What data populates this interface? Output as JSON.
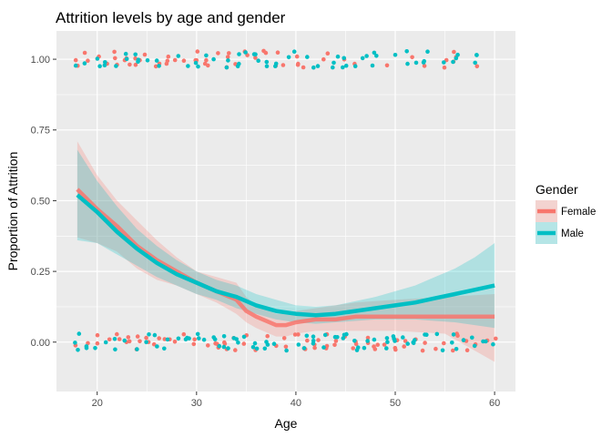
{
  "chart_data": {
    "type": "scatter",
    "title": "Attrition levels by age and gender",
    "xlabel": "Age",
    "ylabel": "Proportion of Attrition",
    "xlim": [
      15.9,
      62.1
    ],
    "ylim": [
      -0.1745,
      1.1
    ],
    "x_ticks": [
      20,
      30,
      40,
      50,
      60
    ],
    "x_tick_labels": [
      "20",
      "30",
      "40",
      "50",
      "60"
    ],
    "y_ticks": [
      0,
      0.25,
      0.5,
      0.75,
      1
    ],
    "y_tick_labels": [
      "0.00",
      "0.25",
      "0.50",
      "0.75",
      "1.00"
    ],
    "grid": true,
    "legend": {
      "title": "Gender",
      "position": "right"
    },
    "colors": {
      "Female": "#F8766D",
      "Male": "#00BFC4",
      "panel": "#EBEBEB",
      "grid": "#FFFFFF"
    },
    "series": [
      {
        "name": "Female",
        "color": "#F8766D",
        "points_y1": [
          18,
          19,
          20,
          21,
          22,
          23,
          24,
          25,
          26,
          27,
          28,
          29,
          30,
          31,
          32,
          33,
          34,
          35,
          36,
          37,
          38,
          39,
          40,
          41,
          43,
          45,
          46,
          49,
          52,
          53,
          55,
          56,
          58
        ],
        "points_y0": [
          18,
          19,
          20,
          21,
          22,
          23,
          24,
          25,
          26,
          27,
          28,
          29,
          30,
          31,
          32,
          33,
          34,
          35,
          36,
          37,
          38,
          39,
          40,
          41,
          42,
          43,
          44,
          45,
          46,
          47,
          48,
          49,
          50,
          51,
          52,
          53,
          54,
          55,
          56,
          57,
          58,
          59,
          60
        ],
        "smooth_x": [
          18,
          20,
          22,
          24,
          26,
          28,
          30,
          32,
          34,
          35,
          36,
          38,
          39,
          40,
          42,
          44,
          46,
          50,
          55,
          60
        ],
        "smooth_y": [
          0.54,
          0.47,
          0.41,
          0.34,
          0.29,
          0.25,
          0.21,
          0.18,
          0.15,
          0.11,
          0.09,
          0.06,
          0.06,
          0.07,
          0.08,
          0.08,
          0.09,
          0.09,
          0.09,
          0.09
        ],
        "ci_upper": [
          0.71,
          0.59,
          0.5,
          0.43,
          0.36,
          0.3,
          0.25,
          0.23,
          0.21,
          0.16,
          0.13,
          0.1,
          0.1,
          0.11,
          0.12,
          0.13,
          0.14,
          0.15,
          0.16,
          0.17
        ],
        "ci_lower": [
          0.37,
          0.35,
          0.32,
          0.26,
          0.22,
          0.2,
          0.17,
          0.14,
          0.1,
          0.07,
          0.05,
          0.02,
          0.02,
          0.03,
          0.04,
          0.04,
          0.04,
          0.04,
          0.03,
          -0.07
        ]
      },
      {
        "name": "Male",
        "color": "#00BFC4",
        "points_y1": [
          18,
          19,
          20,
          21,
          22,
          23,
          24,
          25,
          26,
          28,
          29,
          30,
          31,
          32,
          33,
          34,
          35,
          36,
          37,
          38,
          39,
          40,
          41,
          42,
          44,
          45,
          46,
          47,
          48,
          50,
          51,
          52,
          53,
          55,
          56,
          58
        ],
        "points_y0": [
          18,
          19,
          20,
          21,
          22,
          23,
          24,
          25,
          26,
          27,
          28,
          29,
          30,
          31,
          32,
          33,
          34,
          35,
          36,
          37,
          38,
          39,
          40,
          41,
          42,
          43,
          44,
          45,
          46,
          47,
          48,
          49,
          50,
          51,
          52,
          53,
          54,
          55,
          56,
          57,
          58,
          59,
          60
        ],
        "smooth_x": [
          18,
          20,
          22,
          24,
          26,
          28,
          30,
          32,
          34,
          36,
          38,
          40,
          42,
          44,
          46,
          48,
          50,
          52,
          54,
          56,
          58,
          60
        ],
        "smooth_y": [
          0.52,
          0.46,
          0.39,
          0.33,
          0.28,
          0.24,
          0.21,
          0.18,
          0.16,
          0.13,
          0.11,
          0.1,
          0.095,
          0.1,
          0.11,
          0.12,
          0.13,
          0.14,
          0.155,
          0.17,
          0.185,
          0.2
        ],
        "ci_upper": [
          0.68,
          0.57,
          0.48,
          0.4,
          0.34,
          0.29,
          0.25,
          0.22,
          0.2,
          0.17,
          0.15,
          0.13,
          0.125,
          0.13,
          0.145,
          0.16,
          0.18,
          0.2,
          0.23,
          0.26,
          0.3,
          0.35
        ],
        "ci_lower": [
          0.36,
          0.35,
          0.31,
          0.27,
          0.23,
          0.2,
          0.17,
          0.15,
          0.12,
          0.1,
          0.08,
          0.07,
          0.065,
          0.07,
          0.075,
          0.08,
          0.08,
          0.08,
          0.075,
          0.07,
          0.06,
          0.05
        ]
      }
    ]
  }
}
